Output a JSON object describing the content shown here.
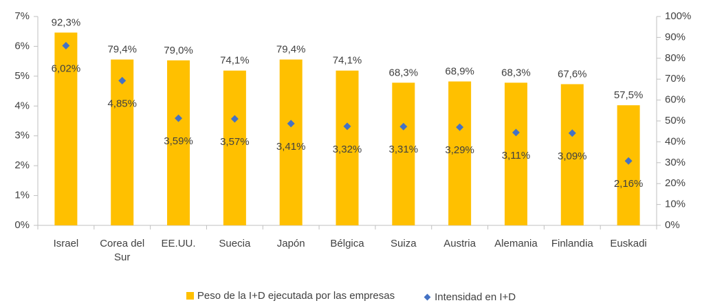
{
  "chart_data": {
    "type": "bar-scatter",
    "categories": [
      "Israel",
      "Corea del Sur",
      "EE.UU.",
      "Suecia",
      "Japón",
      "Bélgica",
      "Suiza",
      "Austria",
      "Alemania",
      "Finlandia",
      "Euskadi"
    ],
    "series": [
      {
        "name": "Peso de la I+D ejecutada por las empresas",
        "color": "#FFC000",
        "axis": "y2",
        "values": [
          92.3,
          79.4,
          79.0,
          74.1,
          79.4,
          74.1,
          68.3,
          68.9,
          68.3,
          67.6,
          57.5
        ],
        "value_labels": [
          "92,3%",
          "79,4%",
          "79,0%",
          "74,1%",
          "79,4%",
          "74,1%",
          "68,3%",
          "68,9%",
          "68,3%",
          "67,6%",
          "57,5%"
        ]
      },
      {
        "name": "Intensidad en I+D",
        "color": "#4472C4",
        "axis": "y",
        "values": [
          6.02,
          4.85,
          3.59,
          3.57,
          3.41,
          3.32,
          3.31,
          3.29,
          3.11,
          3.09,
          2.16
        ],
        "value_labels": [
          "6,02%",
          "4,85%",
          "3,59%",
          "3,57%",
          "3,41%",
          "3,32%",
          "3,31%",
          "3,29%",
          "3,11%",
          "3,09%",
          "2,16%"
        ]
      }
    ],
    "ylim": [
      0,
      7
    ],
    "yticks": [
      {
        "value": 0,
        "label": "0%"
      },
      {
        "value": 1,
        "label": "1%"
      },
      {
        "value": 2,
        "label": "2%"
      },
      {
        "value": 3,
        "label": "3%"
      },
      {
        "value": 4,
        "label": "4%"
      },
      {
        "value": 5,
        "label": "5%"
      },
      {
        "value": 6,
        "label": "6%"
      },
      {
        "value": 7,
        "label": "7%"
      }
    ],
    "y2lim": [
      0,
      100
    ],
    "y2ticks": [
      {
        "value": 0,
        "label": "0%"
      },
      {
        "value": 10,
        "label": "10%"
      },
      {
        "value": 20,
        "label": "20%"
      },
      {
        "value": 30,
        "label": "30%"
      },
      {
        "value": 40,
        "label": "40%"
      },
      {
        "value": 50,
        "label": "50%"
      },
      {
        "value": 60,
        "label": "60%"
      },
      {
        "value": 70,
        "label": "70%"
      },
      {
        "value": 80,
        "label": "80%"
      },
      {
        "value": 90,
        "label": "90%"
      },
      {
        "value": 100,
        "label": "100%"
      }
    ],
    "grid": false
  }
}
